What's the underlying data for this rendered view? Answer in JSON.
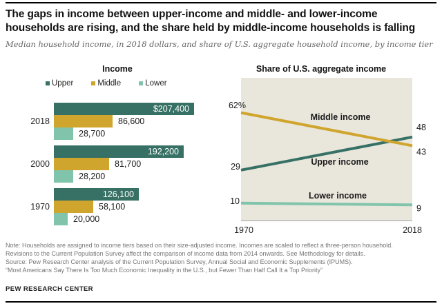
{
  "header": {
    "title_lines": [
      "The gaps in income between upper-income and middle- and lower-income",
      "households are rising, and the share held by middle-income households is falling"
    ],
    "subtitle": "Median household income, in 2018 dollars, and share of U.S. aggregate household income, by income tier"
  },
  "colors": {
    "upper": "#377165",
    "middle": "#d0a52e",
    "lower": "#80c4ac",
    "plot_background": "#e9e6dc",
    "axis": "#999999",
    "note_text": "#757575",
    "rule": "#000000"
  },
  "chart_data": [
    {
      "type": "bar",
      "orientation": "horizontal",
      "title": "Income",
      "legend": [
        "Upper",
        "Middle",
        "Lower"
      ],
      "legend_position": "top",
      "categories": [
        "2018",
        "2000",
        "1970"
      ],
      "series": [
        {
          "name": "Upper",
          "color": "#377165",
          "values": [
            207400,
            192200,
            126100
          ],
          "labels": [
            "$207,400",
            "192,200",
            "126,100"
          ],
          "label_inside": true
        },
        {
          "name": "Middle",
          "color": "#d0a52e",
          "values": [
            86600,
            81700,
            58100
          ],
          "labels": [
            "86,600",
            "81,700",
            "58,100"
          ],
          "label_inside": false
        },
        {
          "name": "Lower",
          "color": "#80c4ac",
          "values": [
            28700,
            28200,
            20000
          ],
          "labels": [
            "28,700",
            "28,200",
            "20,000"
          ],
          "label_inside": false
        }
      ],
      "xlim": [
        0,
        212000
      ],
      "grid": false
    },
    {
      "type": "line",
      "title": "Share of U.S. aggregate income",
      "x": [
        1970,
        2018
      ],
      "x_tick_labels": [
        "1970",
        "2018"
      ],
      "ylim": [
        0,
        82
      ],
      "grid": false,
      "series": [
        {
          "name": "Middle income",
          "color": "#d0a52e",
          "values": [
            62,
            43
          ],
          "start_label": "62%",
          "end_label": "43"
        },
        {
          "name": "Upper income",
          "color": "#377165",
          "values": [
            29,
            48
          ],
          "start_label": "29",
          "end_label": "48"
        },
        {
          "name": "Lower income",
          "color": "#80c4ac",
          "values": [
            10,
            9
          ],
          "start_label": "10",
          "end_label": "9"
        }
      ]
    }
  ],
  "footer": {
    "lines": [
      "Note: Households are assigned to income tiers based on their size-adjusted income. Incomes are scaled to reflect a three-person household.",
      "Revisions to the Current Population Survey affect the comparison of income data from 2014 onwards. See Methodology for details.",
      "Source: Pew Research Center analysis of the Current Population Survey, Annual Social and Economic Supplements (IPUMS).",
      "“Most Americans Say There Is Too Much Economic Inequality in the U.S., but Fewer Than Half Call It a Top Priority”"
    ],
    "brand": "PEW RESEARCH CENTER"
  }
}
